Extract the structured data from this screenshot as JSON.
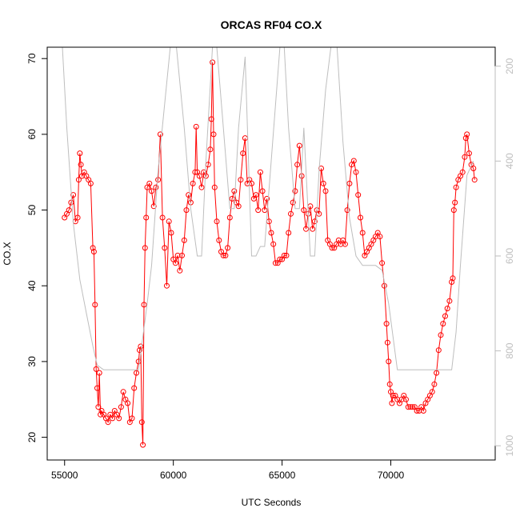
{
  "chart_data": {
    "type": "line",
    "title": "ORCAS RF04 CO.X",
    "xlabel": "UTC Seconds",
    "ylabel": "CO.X",
    "xlim": [
      54200,
      74800
    ],
    "ylim": [
      17,
      71.5
    ],
    "x_ticks": [
      55000,
      60000,
      65000,
      70000
    ],
    "x_tick_labels": [
      "55000",
      "60000",
      "65000",
      "70000"
    ],
    "y_ticks": [
      20,
      30,
      40,
      50,
      60,
      70
    ],
    "y_tick_labels": [
      "20",
      "30",
      "40",
      "50",
      "60",
      "70"
    ],
    "y2lim": [
      1030,
      160
    ],
    "y2_ticks": [
      200,
      400,
      600,
      800,
      1000
    ],
    "y2_tick_labels": [
      "200",
      "400",
      "600",
      "800",
      "1000"
    ],
    "grid": false,
    "legend": "none",
    "colors": {
      "co": "#ff0000",
      "pressure": "#bebebe"
    },
    "series": [
      {
        "key": "co",
        "axis": "left",
        "style": "line+points",
        "points": [
          [
            55000,
            49.0
          ],
          [
            55100,
            49.5
          ],
          [
            55200,
            50.0
          ],
          [
            55300,
            51.0
          ],
          [
            55400,
            52.0
          ],
          [
            55500,
            48.5
          ],
          [
            55600,
            49.0
          ],
          [
            55650,
            54.0
          ],
          [
            55700,
            57.5
          ],
          [
            55750,
            56.0
          ],
          [
            55800,
            54.5
          ],
          [
            55900,
            55.0
          ],
          [
            56000,
            54.5
          ],
          [
            56100,
            54.0
          ],
          [
            56200,
            53.5
          ],
          [
            56300,
            45.0
          ],
          [
            56350,
            44.5
          ],
          [
            56400,
            37.5
          ],
          [
            56450,
            29.0
          ],
          [
            56500,
            26.5
          ],
          [
            56550,
            24.0
          ],
          [
            56600,
            28.5
          ],
          [
            56650,
            23.0
          ],
          [
            56700,
            23.5
          ],
          [
            56800,
            23.0
          ],
          [
            56900,
            22.5
          ],
          [
            57000,
            22.0
          ],
          [
            57100,
            23.0
          ],
          [
            57200,
            22.5
          ],
          [
            57300,
            23.5
          ],
          [
            57400,
            23.0
          ],
          [
            57500,
            22.5
          ],
          [
            57600,
            24.0
          ],
          [
            57700,
            26.0
          ],
          [
            57800,
            25.0
          ],
          [
            57900,
            24.5
          ],
          [
            58000,
            22.0
          ],
          [
            58100,
            22.5
          ],
          [
            58200,
            26.5
          ],
          [
            58300,
            28.5
          ],
          [
            58400,
            30.0
          ],
          [
            58450,
            31.5
          ],
          [
            58500,
            32.0
          ],
          [
            58550,
            22.0
          ],
          [
            58600,
            19.0
          ],
          [
            58650,
            37.5
          ],
          [
            58700,
            45.0
          ],
          [
            58750,
            49.0
          ],
          [
            58800,
            53.0
          ],
          [
            58900,
            53.5
          ],
          [
            59000,
            52.5
          ],
          [
            59100,
            50.5
          ],
          [
            59200,
            53.0
          ],
          [
            59300,
            54.0
          ],
          [
            59400,
            60.0
          ],
          [
            59500,
            49.0
          ],
          [
            59600,
            45.0
          ],
          [
            59700,
            40.0
          ],
          [
            59800,
            48.5
          ],
          [
            59900,
            47.0
          ],
          [
            60000,
            43.5
          ],
          [
            60100,
            43.0
          ],
          [
            60200,
            44.0
          ],
          [
            60300,
            42.0
          ],
          [
            60400,
            44.0
          ],
          [
            60500,
            46.0
          ],
          [
            60600,
            50.0
          ],
          [
            60700,
            52.0
          ],
          [
            60800,
            51.0
          ],
          [
            60900,
            53.5
          ],
          [
            61000,
            55.0
          ],
          [
            61050,
            61.0
          ],
          [
            61100,
            55.0
          ],
          [
            61200,
            54.5
          ],
          [
            61300,
            53.0
          ],
          [
            61400,
            55.0
          ],
          [
            61500,
            54.5
          ],
          [
            61600,
            56.0
          ],
          [
            61700,
            58.0
          ],
          [
            61750,
            62.0
          ],
          [
            61800,
            69.5
          ],
          [
            61850,
            60.0
          ],
          [
            61900,
            53.0
          ],
          [
            62000,
            48.5
          ],
          [
            62100,
            46.0
          ],
          [
            62200,
            44.5
          ],
          [
            62300,
            44.0
          ],
          [
            62400,
            44.0
          ],
          [
            62500,
            45.0
          ],
          [
            62600,
            49.0
          ],
          [
            62700,
            51.5
          ],
          [
            62800,
            52.5
          ],
          [
            62900,
            51.0
          ],
          [
            63000,
            50.5
          ],
          [
            63100,
            54.0
          ],
          [
            63200,
            57.5
          ],
          [
            63300,
            59.5
          ],
          [
            63400,
            53.5
          ],
          [
            63500,
            54.0
          ],
          [
            63600,
            53.5
          ],
          [
            63700,
            51.5
          ],
          [
            63800,
            52.0
          ],
          [
            63900,
            50.0
          ],
          [
            64000,
            55.0
          ],
          [
            64100,
            52.5
          ],
          [
            64200,
            50.0
          ],
          [
            64300,
            51.5
          ],
          [
            64400,
            48.5
          ],
          [
            64500,
            47.0
          ],
          [
            64600,
            45.5
          ],
          [
            64700,
            43.0
          ],
          [
            64800,
            43.0
          ],
          [
            64900,
            43.5
          ],
          [
            65000,
            43.5
          ],
          [
            65100,
            44.0
          ],
          [
            65200,
            44.0
          ],
          [
            65300,
            47.0
          ],
          [
            65400,
            49.5
          ],
          [
            65500,
            51.0
          ],
          [
            65600,
            52.5
          ],
          [
            65700,
            56.0
          ],
          [
            65800,
            58.5
          ],
          [
            65900,
            54.5
          ],
          [
            66000,
            50.0
          ],
          [
            66100,
            47.5
          ],
          [
            66200,
            49.5
          ],
          [
            66300,
            50.5
          ],
          [
            66400,
            47.5
          ],
          [
            66500,
            48.5
          ],
          [
            66600,
            50.0
          ],
          [
            66700,
            49.5
          ],
          [
            66800,
            55.5
          ],
          [
            66900,
            53.5
          ],
          [
            67000,
            52.5
          ],
          [
            67100,
            46.0
          ],
          [
            67200,
            45.5
          ],
          [
            67300,
            45.0
          ],
          [
            67400,
            45.0
          ],
          [
            67500,
            45.5
          ],
          [
            67600,
            46.0
          ],
          [
            67700,
            45.5
          ],
          [
            67800,
            46.0
          ],
          [
            67900,
            45.5
          ],
          [
            68000,
            50.0
          ],
          [
            68100,
            53.5
          ],
          [
            68200,
            56.0
          ],
          [
            68300,
            56.5
          ],
          [
            68400,
            55.0
          ],
          [
            68500,
            52.0
          ],
          [
            68600,
            49.0
          ],
          [
            68700,
            47.0
          ],
          [
            68800,
            44.0
          ],
          [
            68900,
            44.5
          ],
          [
            69000,
            45.0
          ],
          [
            69100,
            45.5
          ],
          [
            69200,
            46.0
          ],
          [
            69300,
            46.5
          ],
          [
            69400,
            47.0
          ],
          [
            69500,
            46.5
          ],
          [
            69600,
            43.0
          ],
          [
            69700,
            40.0
          ],
          [
            69800,
            35.0
          ],
          [
            69850,
            32.5
          ],
          [
            69900,
            30.0
          ],
          [
            69950,
            27.0
          ],
          [
            70000,
            26.0
          ],
          [
            70050,
            24.5
          ],
          [
            70100,
            25.5
          ],
          [
            70200,
            25.5
          ],
          [
            70300,
            25.0
          ],
          [
            70400,
            24.5
          ],
          [
            70500,
            25.0
          ],
          [
            70600,
            25.5
          ],
          [
            70700,
            25.0
          ],
          [
            70800,
            24.0
          ],
          [
            70900,
            24.0
          ],
          [
            71000,
            24.0
          ],
          [
            71100,
            24.0
          ],
          [
            71200,
            23.5
          ],
          [
            71300,
            23.5
          ],
          [
            71400,
            24.0
          ],
          [
            71500,
            23.5
          ],
          [
            71600,
            24.5
          ],
          [
            71700,
            25.0
          ],
          [
            71800,
            25.5
          ],
          [
            71900,
            26.0
          ],
          [
            72000,
            27.0
          ],
          [
            72100,
            28.5
          ],
          [
            72200,
            31.5
          ],
          [
            72300,
            33.5
          ],
          [
            72400,
            35.0
          ],
          [
            72500,
            36.0
          ],
          [
            72600,
            37.0
          ],
          [
            72700,
            38.0
          ],
          [
            72800,
            40.5
          ],
          [
            72850,
            41.0
          ],
          [
            72900,
            50.0
          ],
          [
            72950,
            51.0
          ],
          [
            73000,
            53.0
          ],
          [
            73100,
            54.0
          ],
          [
            73200,
            54.5
          ],
          [
            73300,
            55.0
          ],
          [
            73400,
            57.0
          ],
          [
            73450,
            59.5
          ],
          [
            73500,
            60.0
          ],
          [
            73600,
            57.5
          ],
          [
            73700,
            56.0
          ],
          [
            73800,
            55.5
          ],
          [
            73850,
            54.0
          ]
        ]
      },
      {
        "key": "pressure",
        "axis": "right",
        "style": "line",
        "points": [
          [
            54900,
            160
          ],
          [
            55100,
            330
          ],
          [
            55400,
            530
          ],
          [
            55700,
            650
          ],
          [
            56000,
            720
          ],
          [
            56300,
            790
          ],
          [
            56500,
            830
          ],
          [
            56800,
            840
          ],
          [
            57500,
            840
          ],
          [
            58000,
            840
          ],
          [
            58400,
            840
          ],
          [
            58800,
            700
          ],
          [
            59000,
            620
          ],
          [
            59300,
            420
          ],
          [
            59600,
            280
          ],
          [
            59900,
            140
          ],
          [
            60100,
            140
          ],
          [
            60500,
            330
          ],
          [
            60800,
            500
          ],
          [
            61100,
            600
          ],
          [
            61300,
            600
          ],
          [
            61500,
            400
          ],
          [
            61800,
            160
          ],
          [
            62000,
            160
          ],
          [
            62300,
            330
          ],
          [
            62600,
            500
          ],
          [
            62800,
            500
          ],
          [
            63000,
            330
          ],
          [
            63300,
            180
          ],
          [
            63600,
            600
          ],
          [
            63800,
            600
          ],
          [
            64000,
            580
          ],
          [
            64200,
            580
          ],
          [
            64500,
            400
          ],
          [
            64900,
            160
          ],
          [
            65100,
            160
          ],
          [
            65300,
            330
          ],
          [
            65600,
            500
          ],
          [
            65800,
            500
          ],
          [
            66000,
            330
          ],
          [
            66300,
            600
          ],
          [
            66500,
            600
          ],
          [
            66700,
            420
          ],
          [
            67000,
            250
          ],
          [
            67300,
            140
          ],
          [
            67500,
            140
          ],
          [
            67800,
            360
          ],
          [
            68100,
            520
          ],
          [
            68400,
            600
          ],
          [
            68700,
            620
          ],
          [
            69000,
            620
          ],
          [
            69300,
            620
          ],
          [
            69600,
            630
          ],
          [
            69900,
            700
          ],
          [
            70300,
            840
          ],
          [
            70700,
            840
          ],
          [
            71500,
            840
          ],
          [
            72000,
            840
          ],
          [
            72500,
            840
          ],
          [
            72800,
            840
          ],
          [
            73000,
            760
          ],
          [
            73200,
            620
          ],
          [
            73500,
            430
          ],
          [
            73800,
            400
          ]
        ]
      }
    ]
  }
}
